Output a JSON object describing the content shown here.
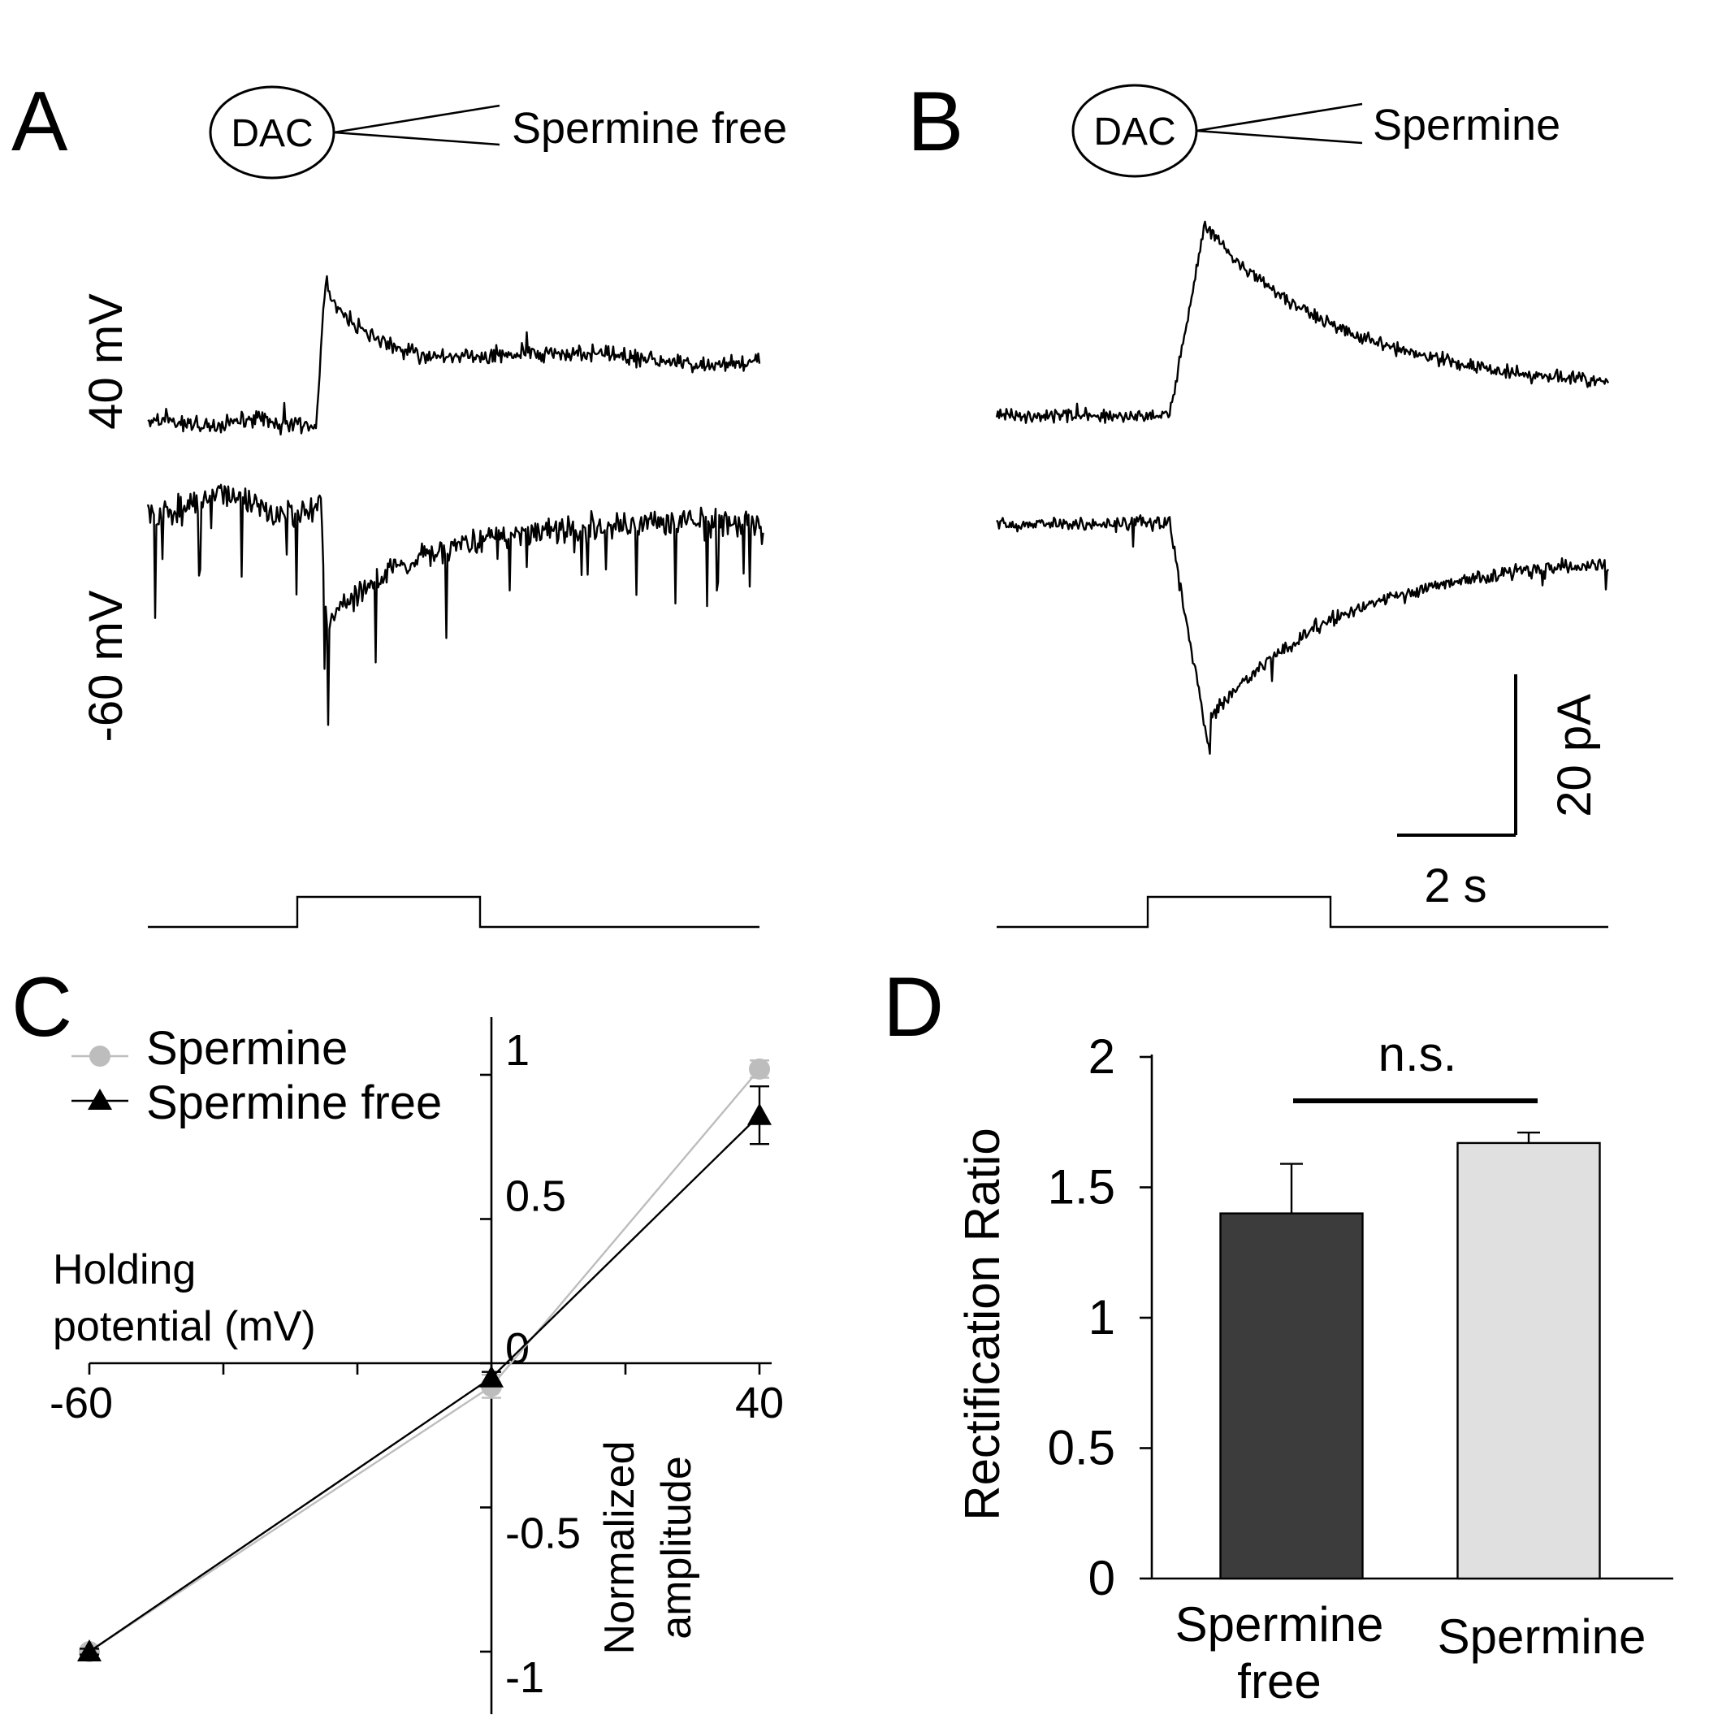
{
  "panels": {
    "A": {
      "letter": "A",
      "dac_label": "DAC",
      "pipette_label": "Spermine free",
      "trace_top_label": "40 mV",
      "trace_bottom_label": "-60 mV"
    },
    "B": {
      "letter": "B",
      "dac_label": "DAC",
      "pipette_label": "Spermine",
      "scale_y_label": "20 pA",
      "scale_x_label": "2 s"
    },
    "C": {
      "letter": "C"
    },
    "D": {
      "letter": "D"
    }
  },
  "chart_data": [
    {
      "id": "C",
      "type": "line",
      "xlabel": "Holding potential (mV)",
      "xlabel_lines": [
        "Holding",
        "potential (mV)"
      ],
      "ylabel": "Normalized amplitude",
      "ylabel_lines": [
        "Normalized",
        "amplitude"
      ],
      "xlim": [
        -60,
        40
      ],
      "ylim": [
        -1.2,
        1.2
      ],
      "x_ticks": [
        -60,
        40
      ],
      "x_tick_labels": [
        "-60",
        "40"
      ],
      "y_ticks": [
        -1,
        -0.5,
        0,
        0.5,
        1
      ],
      "y_tick_labels": [
        "-1",
        "-0.5",
        "0",
        "0.5",
        "1"
      ],
      "legend_position": "top-left",
      "series": [
        {
          "name": "Spermine",
          "marker": "circle",
          "color": "#bdbdbd",
          "x": [
            -60,
            0,
            40
          ],
          "y": [
            -1,
            -0.08,
            1.02
          ],
          "err": [
            0.01,
            0.04,
            0.03
          ]
        },
        {
          "name": "Spermine free",
          "marker": "triangle",
          "color": "#000000",
          "x": [
            -60,
            0,
            40
          ],
          "y": [
            -1,
            -0.05,
            0.86
          ],
          "err": [
            0.01,
            0.02,
            0.1
          ]
        }
      ]
    },
    {
      "id": "D",
      "type": "bar",
      "ylabel": "Rectification Ratio",
      "ylim": [
        0,
        2
      ],
      "y_ticks": [
        0,
        0.5,
        1,
        1.5,
        2
      ],
      "y_tick_labels": [
        "0",
        "0.5",
        "1",
        "1.5",
        "2"
      ],
      "categories": [
        "Spermine free",
        "Spermine"
      ],
      "category_lines": [
        [
          "Spermine",
          "free"
        ],
        [
          "Spermine"
        ]
      ],
      "values": [
        1.4,
        1.67
      ],
      "errors": [
        0.19,
        0.04
      ],
      "colors": [
        "#3c3c3c",
        "#e0e0e0"
      ],
      "annotation": "n.s."
    }
  ]
}
